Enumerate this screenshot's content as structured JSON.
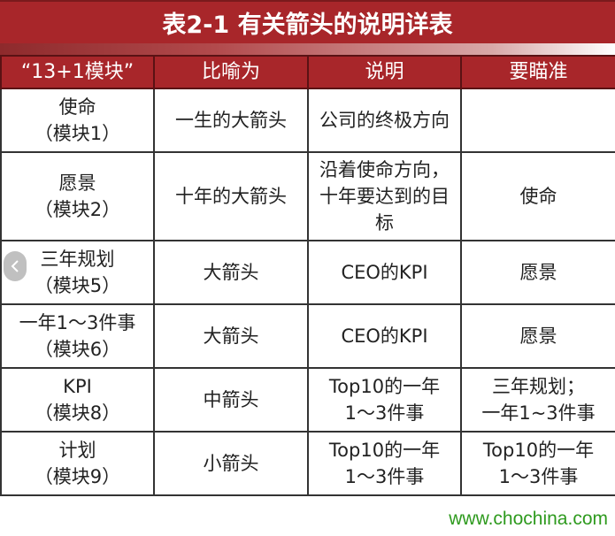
{
  "title": "表2-1 有关箭头的说明详表",
  "headers": [
    "“13+1模块”",
    "比喻为",
    "说明",
    "要瞄准"
  ],
  "rows": [
    [
      "使命\n（模块1）",
      "一生的大箭头",
      "公司的终极方向",
      ""
    ],
    [
      "愿景\n（模块2）",
      "十年的大箭头",
      "沿着使命方向，十年要达到的目标",
      "使命"
    ],
    [
      "三年规划\n（模块5）",
      "大箭头",
      "CEO的KPI",
      "愿景"
    ],
    [
      "一年1～3件事\n（模块6）",
      "大箭头",
      "CEO的KPI",
      "愿景"
    ],
    [
      "KPI\n（模块8）",
      "中箭头",
      "Top10的一年\n1～3件事",
      "三年规划；\n一年1~3件事"
    ],
    [
      "计划\n（模块9）",
      "小箭头",
      "Top10的一年\n1～3件事",
      "Top10的一年\n1～3件事"
    ]
  ],
  "watermark": "www.chochina.com",
  "prev_icon": "chevron-left-icon"
}
